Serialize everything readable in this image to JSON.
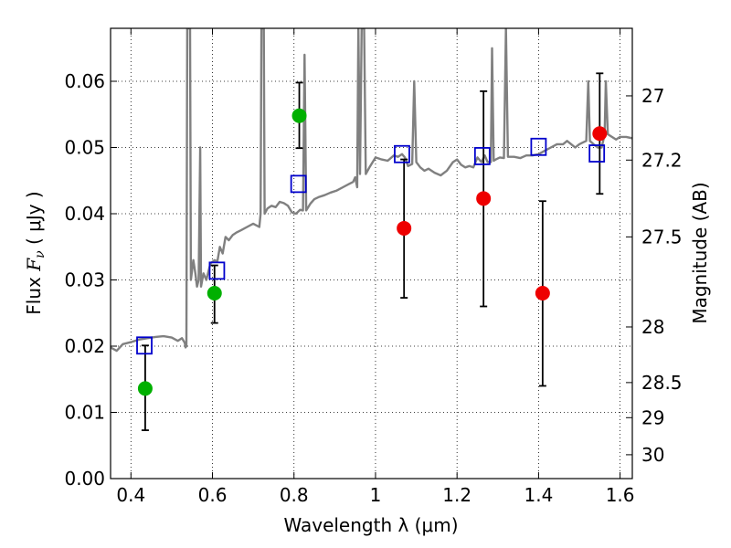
{
  "chart_data": {
    "type": "scatter",
    "title": "",
    "xlabel": "Wavelength  λ (μm)",
    "ylabel_left": {
      "prefix": "Flux  ",
      "symbol": "F",
      "subscript": "ν",
      "unit": "  ( μJy )"
    },
    "ylabel_right": "Magnitude (AB)",
    "xlim": [
      0.35,
      1.63
    ],
    "ylim": [
      0.0,
      0.068
    ],
    "grid": true,
    "x_ticks": [
      0.4,
      0.6,
      0.8,
      1.0,
      1.2,
      1.4,
      1.6
    ],
    "x_tick_labels": [
      "0.4",
      "0.6",
      "0.8",
      "1",
      "1.2",
      "1.4",
      "1.6"
    ],
    "y_ticks": [
      0.0,
      0.01,
      0.02,
      0.03,
      0.04,
      0.05,
      0.06
    ],
    "y_tick_labels": [
      "0.00",
      "0.01",
      "0.02",
      "0.03",
      "0.04",
      "0.05",
      "0.06"
    ],
    "right_ticks": [
      {
        "label": "27",
        "flux": 0.0578
      },
      {
        "label": "27.2",
        "flux": 0.0481
      },
      {
        "label": "27.5",
        "flux": 0.0365
      },
      {
        "label": "28",
        "flux": 0.0229
      },
      {
        "label": "28.5",
        "flux": 0.0145
      },
      {
        "label": "29",
        "flux": 0.0092
      },
      {
        "label": "30",
        "flux": 0.0036
      }
    ],
    "colors": {
      "model": "#808080",
      "green": "#00b000",
      "red": "#ee0000",
      "square": "#0000cc",
      "errorbar": "#000000"
    },
    "series": [
      {
        "kind": "line",
        "points": [
          [
            0.35,
            0.0198
          ],
          [
            0.365,
            0.0193
          ],
          [
            0.38,
            0.0203
          ],
          [
            0.4,
            0.0206
          ],
          [
            0.42,
            0.021
          ],
          [
            0.44,
            0.0212
          ],
          [
            0.46,
            0.0214
          ],
          [
            0.48,
            0.0215
          ],
          [
            0.5,
            0.0213
          ],
          [
            0.515,
            0.0208
          ],
          [
            0.525,
            0.0212
          ],
          [
            0.532,
            0.0205
          ],
          [
            0.534,
            0.0198
          ],
          [
            0.536,
            0.02
          ],
          [
            0.538,
            0.068
          ],
          [
            0.545,
            0.068
          ],
          [
            0.547,
            0.03
          ],
          [
            0.553,
            0.033
          ],
          [
            0.558,
            0.031
          ],
          [
            0.562,
            0.029
          ],
          [
            0.566,
            0.03
          ],
          [
            0.57,
            0.05
          ],
          [
            0.572,
            0.029
          ],
          [
            0.578,
            0.031
          ],
          [
            0.585,
            0.03
          ],
          [
            0.595,
            0.0325
          ],
          [
            0.605,
            0.033
          ],
          [
            0.612,
            0.0328
          ],
          [
            0.618,
            0.035
          ],
          [
            0.625,
            0.034
          ],
          [
            0.632,
            0.0365
          ],
          [
            0.64,
            0.036
          ],
          [
            0.65,
            0.0368
          ],
          [
            0.66,
            0.0372
          ],
          [
            0.67,
            0.0375
          ],
          [
            0.685,
            0.038
          ],
          [
            0.7,
            0.0385
          ],
          [
            0.715,
            0.038
          ],
          [
            0.718,
            0.04
          ],
          [
            0.72,
            0.068
          ],
          [
            0.726,
            0.068
          ],
          [
            0.728,
            0.04
          ],
          [
            0.735,
            0.0408
          ],
          [
            0.745,
            0.0412
          ],
          [
            0.755,
            0.041
          ],
          [
            0.765,
            0.0418
          ],
          [
            0.775,
            0.0416
          ],
          [
            0.785,
            0.0412
          ],
          [
            0.795,
            0.0402
          ],
          [
            0.805,
            0.04
          ],
          [
            0.815,
            0.0406
          ],
          [
            0.822,
            0.0405
          ],
          [
            0.826,
            0.064
          ],
          [
            0.83,
            0.0405
          ],
          [
            0.84,
            0.0415
          ],
          [
            0.85,
            0.0422
          ],
          [
            0.86,
            0.0425
          ],
          [
            0.875,
            0.0428
          ],
          [
            0.89,
            0.0432
          ],
          [
            0.905,
            0.0435
          ],
          [
            0.92,
            0.044
          ],
          [
            0.935,
            0.0445
          ],
          [
            0.945,
            0.0448
          ],
          [
            0.95,
            0.0455
          ],
          [
            0.955,
            0.044
          ],
          [
            0.958,
            0.068
          ],
          [
            0.962,
            0.046
          ],
          [
            0.966,
            0.068
          ],
          [
            0.972,
            0.068
          ],
          [
            0.976,
            0.046
          ],
          [
            0.985,
            0.047
          ],
          [
            1.0,
            0.0485
          ],
          [
            1.015,
            0.0482
          ],
          [
            1.03,
            0.048
          ],
          [
            1.045,
            0.0488
          ],
          [
            1.055,
            0.0486
          ],
          [
            1.065,
            0.049
          ],
          [
            1.072,
            0.0485
          ],
          [
            1.08,
            0.0472
          ],
          [
            1.09,
            0.0475
          ],
          [
            1.095,
            0.06
          ],
          [
            1.1,
            0.0478
          ],
          [
            1.11,
            0.047
          ],
          [
            1.12,
            0.0465
          ],
          [
            1.13,
            0.0468
          ],
          [
            1.145,
            0.0462
          ],
          [
            1.16,
            0.0458
          ],
          [
            1.175,
            0.0465
          ],
          [
            1.19,
            0.0478
          ],
          [
            1.2,
            0.0482
          ],
          [
            1.21,
            0.0474
          ],
          [
            1.22,
            0.047
          ],
          [
            1.23,
            0.0472
          ],
          [
            1.24,
            0.047
          ],
          [
            1.25,
            0.0485
          ],
          [
            1.26,
            0.0478
          ],
          [
            1.268,
            0.0488
          ],
          [
            1.275,
            0.0478
          ],
          [
            1.283,
            0.0478
          ],
          [
            1.286,
            0.065
          ],
          [
            1.29,
            0.048
          ],
          [
            1.295,
            0.0482
          ],
          [
            1.305,
            0.0485
          ],
          [
            1.315,
            0.0484
          ],
          [
            1.32,
            0.068
          ],
          [
            1.325,
            0.0486
          ],
          [
            1.34,
            0.0486
          ],
          [
            1.355,
            0.0484
          ],
          [
            1.37,
            0.0488
          ],
          [
            1.385,
            0.0488
          ],
          [
            1.4,
            0.049
          ],
          [
            1.415,
            0.0495
          ],
          [
            1.43,
            0.05
          ],
          [
            1.445,
            0.0505
          ],
          [
            1.46,
            0.0505
          ],
          [
            1.47,
            0.051
          ],
          [
            1.48,
            0.0505
          ],
          [
            1.49,
            0.05
          ],
          [
            1.5,
            0.0505
          ],
          [
            1.51,
            0.0508
          ],
          [
            1.517,
            0.051
          ],
          [
            1.522,
            0.06
          ],
          [
            1.526,
            0.051
          ],
          [
            1.535,
            0.0505
          ],
          [
            1.545,
            0.05
          ],
          [
            1.555,
            0.05
          ],
          [
            1.562,
            0.052
          ],
          [
            1.565,
            0.06
          ],
          [
            1.57,
            0.052
          ],
          [
            1.58,
            0.0516
          ],
          [
            1.59,
            0.0512
          ],
          [
            1.6,
            0.0516
          ],
          [
            1.615,
            0.0516
          ],
          [
            1.63,
            0.0514
          ]
        ]
      },
      {
        "kind": "points",
        "marker": "circle",
        "color_key": "green",
        "points": [
          {
            "x": 0.435,
            "y": 0.0136,
            "lo": 0.0073,
            "hi": 0.0201
          },
          {
            "x": 0.605,
            "y": 0.028,
            "lo": 0.0235,
            "hi": 0.0322
          },
          {
            "x": 0.813,
            "y": 0.0548,
            "lo": 0.0499,
            "hi": 0.0598
          }
        ]
      },
      {
        "kind": "points",
        "marker": "circle",
        "color_key": "red",
        "points": [
          {
            "x": 1.07,
            "y": 0.0378,
            "lo": 0.0273,
            "hi": 0.0482
          },
          {
            "x": 1.265,
            "y": 0.0423,
            "lo": 0.026,
            "hi": 0.0585
          },
          {
            "x": 1.41,
            "y": 0.028,
            "lo": 0.014,
            "hi": 0.0419
          },
          {
            "x": 1.55,
            "y": 0.0521,
            "lo": 0.043,
            "hi": 0.0612
          }
        ]
      },
      {
        "kind": "points",
        "marker": "square",
        "color_key": "square",
        "points": [
          {
            "x": 0.433,
            "y": 0.0201
          },
          {
            "x": 0.611,
            "y": 0.0314
          },
          {
            "x": 0.811,
            "y": 0.0445
          },
          {
            "x": 1.065,
            "y": 0.049
          },
          {
            "x": 1.262,
            "y": 0.0487
          },
          {
            "x": 1.4,
            "y": 0.0501
          },
          {
            "x": 1.543,
            "y": 0.0491
          }
        ]
      }
    ]
  }
}
